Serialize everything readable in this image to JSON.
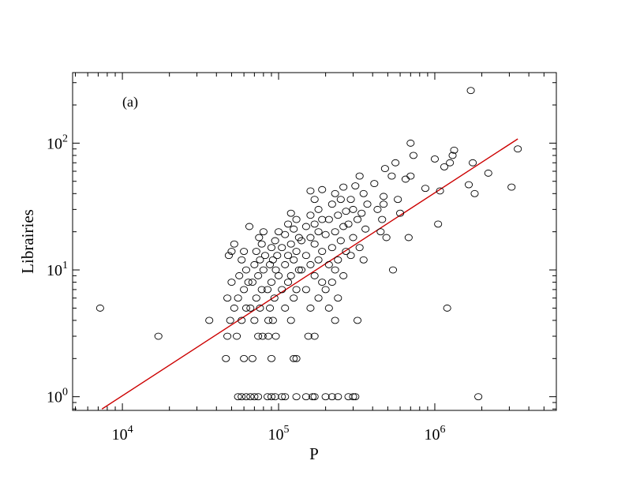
{
  "chart_data": {
    "type": "scatter",
    "panel_label": "(a)",
    "xlabel": "P",
    "ylabel": "Librairies",
    "x_scale": "log",
    "y_scale": "log",
    "xlim": [
      4800,
      6000000
    ],
    "ylim": [
      0.78,
      360
    ],
    "x_ticks": [
      {
        "value": 10000,
        "base": "10",
        "exp": "4"
      },
      {
        "value": 100000,
        "base": "10",
        "exp": "5"
      },
      {
        "value": 1000000,
        "base": "10",
        "exp": "6"
      }
    ],
    "y_ticks": [
      {
        "value": 1,
        "base": "10",
        "exp": "0"
      },
      {
        "value": 10,
        "base": "10",
        "exp": "1"
      },
      {
        "value": 100,
        "base": "10",
        "exp": "2"
      }
    ],
    "grid": false,
    "fit_line": {
      "color": "#cc0000",
      "x": [
        7400,
        3400000
      ],
      "y": [
        0.8,
        108
      ]
    },
    "series": [
      {
        "marker": "open-circle",
        "points": [
          [
            7200,
            5
          ],
          [
            17000,
            3
          ],
          [
            36000,
            4
          ],
          [
            1200000,
            5
          ],
          [
            1900000,
            1
          ],
          [
            1700000,
            260
          ],
          [
            3400000,
            90
          ],
          [
            3100000,
            45
          ],
          [
            2200000,
            58
          ],
          [
            1650000,
            47
          ],
          [
            1800000,
            40
          ],
          [
            1750000,
            70
          ],
          [
            1050000,
            23
          ],
          [
            1080000,
            42
          ],
          [
            1150000,
            65
          ],
          [
            1000000,
            75
          ],
          [
            1250000,
            70
          ],
          [
            1300000,
            80
          ],
          [
            1330000,
            88
          ],
          [
            870000,
            44
          ],
          [
            700000,
            100
          ],
          [
            730000,
            80
          ],
          [
            700000,
            55
          ],
          [
            650000,
            52
          ],
          [
            680000,
            18
          ],
          [
            560000,
            70
          ],
          [
            530000,
            55
          ],
          [
            580000,
            36
          ],
          [
            600000,
            28
          ],
          [
            540000,
            10
          ],
          [
            480000,
            63
          ],
          [
            470000,
            33
          ],
          [
            460000,
            25
          ],
          [
            490000,
            18
          ],
          [
            450000,
            20
          ],
          [
            470000,
            38
          ],
          [
            430000,
            30
          ],
          [
            410000,
            48
          ],
          [
            330000,
            55
          ],
          [
            310000,
            46
          ],
          [
            350000,
            40
          ],
          [
            290000,
            36
          ],
          [
            370000,
            33
          ],
          [
            300000,
            30
          ],
          [
            340000,
            28
          ],
          [
            320000,
            25
          ],
          [
            280000,
            23
          ],
          [
            360000,
            21
          ],
          [
            300000,
            18
          ],
          [
            330000,
            15
          ],
          [
            290000,
            13
          ],
          [
            350000,
            12
          ],
          [
            320000,
            4
          ],
          [
            260000,
            45
          ],
          [
            230000,
            40
          ],
          [
            250000,
            36
          ],
          [
            220000,
            33
          ],
          [
            270000,
            29
          ],
          [
            240000,
            27
          ],
          [
            210000,
            25
          ],
          [
            260000,
            22
          ],
          [
            230000,
            20
          ],
          [
            200000,
            19
          ],
          [
            250000,
            17
          ],
          [
            220000,
            15
          ],
          [
            270000,
            14
          ],
          [
            240000,
            12
          ],
          [
            210000,
            11
          ],
          [
            230000,
            10
          ],
          [
            260000,
            9
          ],
          [
            220000,
            8
          ],
          [
            200000,
            7
          ],
          [
            240000,
            6
          ],
          [
            210000,
            5
          ],
          [
            230000,
            4
          ],
          [
            190000,
            43
          ],
          [
            160000,
            42
          ],
          [
            170000,
            36
          ],
          [
            180000,
            30
          ],
          [
            160000,
            27
          ],
          [
            190000,
            25
          ],
          [
            170000,
            23
          ],
          [
            150000,
            22
          ],
          [
            180000,
            20
          ],
          [
            160000,
            18
          ],
          [
            140000,
            17
          ],
          [
            170000,
            16
          ],
          [
            190000,
            14
          ],
          [
            150000,
            13
          ],
          [
            180000,
            12
          ],
          [
            160000,
            11
          ],
          [
            140000,
            10
          ],
          [
            170000,
            9
          ],
          [
            190000,
            8
          ],
          [
            150000,
            7
          ],
          [
            180000,
            6
          ],
          [
            160000,
            5
          ],
          [
            170000,
            3
          ],
          [
            155000,
            3
          ],
          [
            120000,
            28
          ],
          [
            130000,
            25
          ],
          [
            115000,
            23
          ],
          [
            125000,
            21
          ],
          [
            110000,
            19
          ],
          [
            135000,
            18
          ],
          [
            120000,
            16
          ],
          [
            105000,
            15
          ],
          [
            130000,
            14
          ],
          [
            115000,
            13
          ],
          [
            125000,
            12
          ],
          [
            110000,
            11
          ],
          [
            135000,
            10
          ],
          [
            100000,
            9
          ],
          [
            120000,
            9
          ],
          [
            115000,
            8
          ],
          [
            130000,
            7
          ],
          [
            105000,
            7
          ],
          [
            125000,
            6
          ],
          [
            110000,
            5
          ],
          [
            120000,
            4
          ],
          [
            130000,
            2
          ],
          [
            125000,
            2
          ],
          [
            100000,
            20
          ],
          [
            95000,
            17
          ],
          [
            90000,
            15
          ],
          [
            98000,
            13
          ],
          [
            92000,
            12
          ],
          [
            88000,
            11
          ],
          [
            96000,
            10
          ],
          [
            90000,
            8
          ],
          [
            85000,
            7
          ],
          [
            94000,
            6
          ],
          [
            88000,
            5
          ],
          [
            92000,
            4
          ],
          [
            86000,
            4
          ],
          [
            96000,
            3
          ],
          [
            90000,
            2
          ],
          [
            86000,
            3
          ],
          [
            80000,
            20
          ],
          [
            75000,
            18
          ],
          [
            78000,
            16
          ],
          [
            72000,
            14
          ],
          [
            82000,
            13
          ],
          [
            76000,
            12
          ],
          [
            70000,
            11
          ],
          [
            80000,
            10
          ],
          [
            74000,
            9
          ],
          [
            68000,
            8
          ],
          [
            78000,
            7
          ],
          [
            72000,
            6
          ],
          [
            66000,
            5
          ],
          [
            76000,
            5
          ],
          [
            70000,
            4
          ],
          [
            74000,
            3
          ],
          [
            68000,
            2
          ],
          [
            79000,
            3
          ],
          [
            65000,
            22
          ],
          [
            60000,
            14
          ],
          [
            58000,
            12
          ],
          [
            62000,
            10
          ],
          [
            56000,
            9
          ],
          [
            64000,
            8
          ],
          [
            60000,
            7
          ],
          [
            55000,
            6
          ],
          [
            62000,
            5
          ],
          [
            58000,
            4
          ],
          [
            54000,
            3
          ],
          [
            60000,
            2
          ],
          [
            52000,
            16
          ],
          [
            50000,
            14
          ],
          [
            48000,
            13
          ],
          [
            50000,
            8
          ],
          [
            47000,
            6
          ],
          [
            52000,
            5
          ],
          [
            49000,
            4
          ],
          [
            46000,
            2
          ],
          [
            47000,
            3
          ],
          [
            55000,
            1
          ],
          [
            58000,
            1
          ],
          [
            62000,
            1
          ],
          [
            66000,
            1
          ],
          [
            70000,
            1
          ],
          [
            74000,
            1
          ],
          [
            85000,
            1
          ],
          [
            90000,
            1
          ],
          [
            95000,
            1
          ],
          [
            105000,
            1
          ],
          [
            110000,
            1
          ],
          [
            130000,
            1
          ],
          [
            150000,
            1
          ],
          [
            165000,
            1
          ],
          [
            170000,
            1
          ],
          [
            200000,
            1
          ],
          [
            220000,
            1
          ],
          [
            240000,
            1
          ],
          [
            280000,
            1
          ],
          [
            300000,
            1
          ],
          [
            310000,
            1
          ]
        ]
      }
    ]
  }
}
